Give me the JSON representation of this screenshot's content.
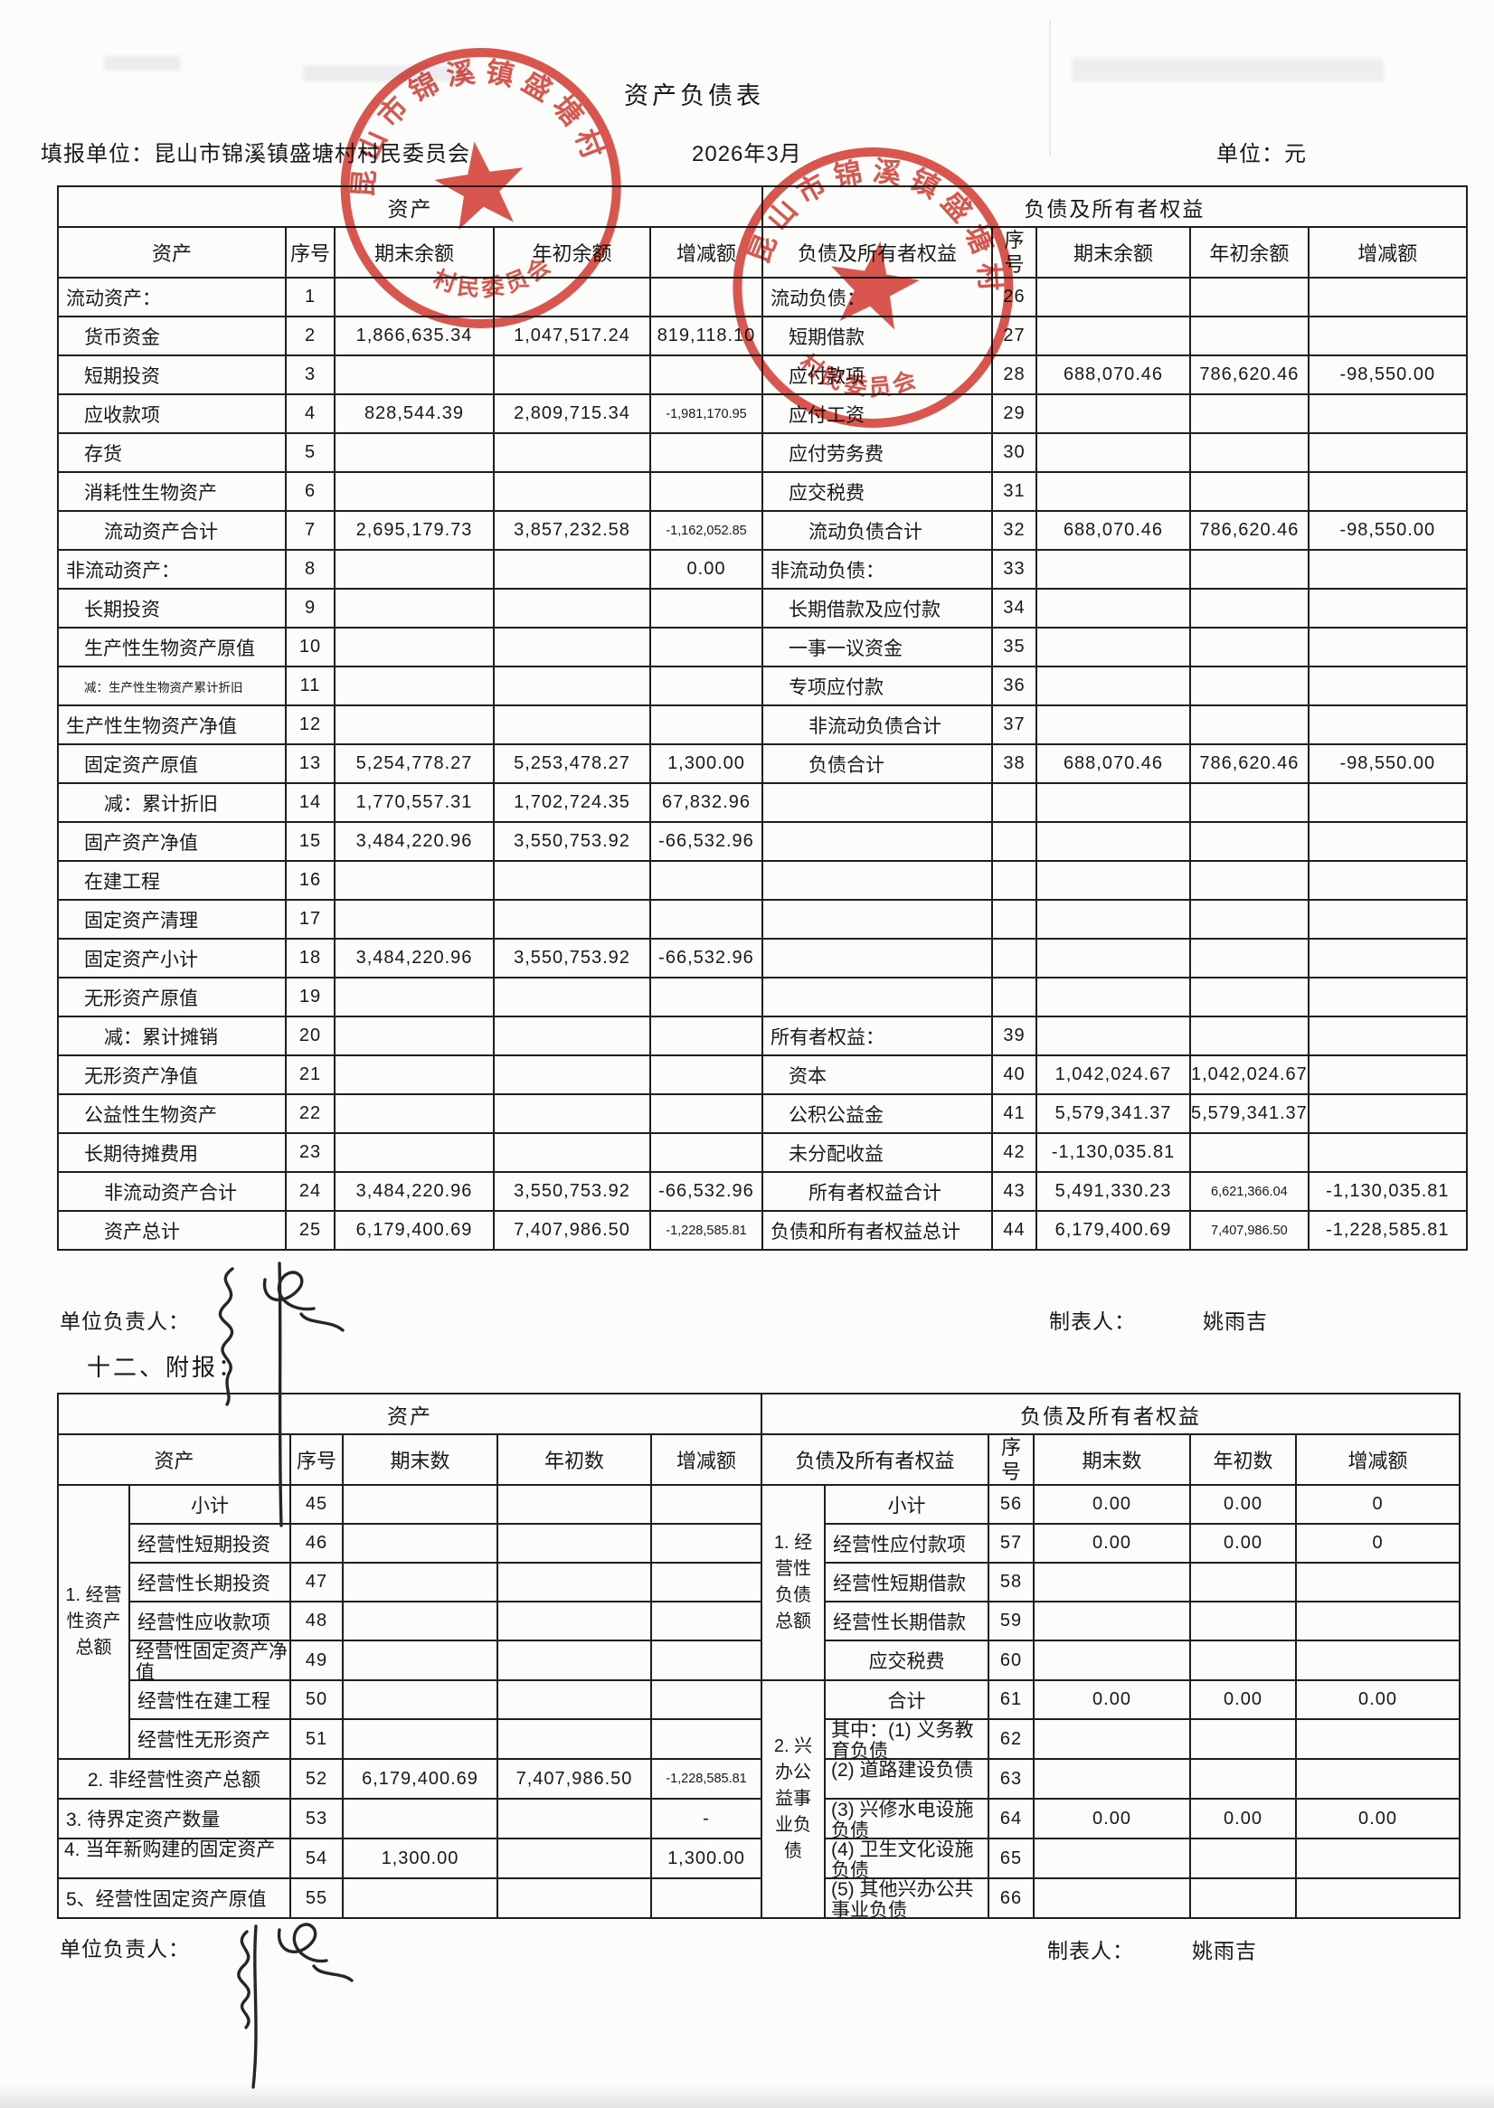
{
  "page": {
    "title": "资产负债表",
    "fill_unit": "填报单位：昆山市锦溪镇盛塘村村民委员会",
    "period": "2026年3月",
    "unit": "单位：元",
    "attachment_heading": "十二、附报："
  },
  "stamp": {
    "arc_text": "昆山市锦溪镇盛塘村",
    "bottom_text": "村民委员会",
    "color": "#d6372d"
  },
  "footer1": {
    "responsible_label": "单位负责人：",
    "preparer_label": "制表人：",
    "preparer_name": "姚雨吉"
  },
  "footer2": {
    "responsible_label": "单位负责人：",
    "preparer_label": "制表人：",
    "preparer_name": "姚雨吉"
  },
  "table1": {
    "section_left": "资产",
    "section_right": "负债及所有者权益",
    "cols_left": [
      "资产",
      "序号",
      "期末余额",
      "年初余额",
      "增减额"
    ],
    "cols_right": [
      "负债及所有者权益",
      "序号",
      "期末余额",
      "年初余额",
      "增减额"
    ],
    "rows": [
      {
        "l": {
          "label": "流动资产：",
          "no": "1",
          "ind": 0
        },
        "r": {
          "label": "流动负债：",
          "no": "26",
          "ind": 0
        }
      },
      {
        "l": {
          "label": "货币资金",
          "no": "2",
          "ind": 1,
          "end": "1,866,635.34",
          "begin": "1,047,517.24",
          "chg": "819,118.10"
        },
        "r": {
          "label": "短期借款",
          "no": "27",
          "ind": 1
        }
      },
      {
        "l": {
          "label": "短期投资",
          "no": "3",
          "ind": 1
        },
        "r": {
          "label": "应付款项",
          "no": "28",
          "ind": 1,
          "end": "688,070.46",
          "begin": "786,620.46",
          "chg": "-98,550.00"
        }
      },
      {
        "l": {
          "label": "应收款项",
          "no": "4",
          "ind": 1,
          "end": "828,544.39",
          "begin": "2,809,715.34",
          "chg": "-1,981,170.95",
          "chg_s": 1
        },
        "r": {
          "label": "应付工资",
          "no": "29",
          "ind": 1
        }
      },
      {
        "l": {
          "label": "存货",
          "no": "5",
          "ind": 1
        },
        "r": {
          "label": "应付劳务费",
          "no": "30",
          "ind": 1
        }
      },
      {
        "l": {
          "label": "消耗性生物资产",
          "no": "6",
          "ind": 1
        },
        "r": {
          "label": "应交税费",
          "no": "31",
          "ind": 1
        }
      },
      {
        "l": {
          "label": "流动资产合计",
          "no": "7",
          "ind": 2,
          "end": "2,695,179.73",
          "begin": "3,857,232.58",
          "chg": "-1,162,052.85",
          "chg_s": 1
        },
        "r": {
          "label": "流动负债合计",
          "no": "32",
          "ind": 2,
          "end": "688,070.46",
          "begin": "786,620.46",
          "chg": "-98,550.00"
        }
      },
      {
        "l": {
          "label": "非流动资产：",
          "no": "8",
          "ind": 0,
          "chg": "0.00"
        },
        "r": {
          "label": "非流动负债：",
          "no": "33",
          "ind": 0
        }
      },
      {
        "l": {
          "label": "长期投资",
          "no": "9",
          "ind": 1
        },
        "r": {
          "label": "长期借款及应付款",
          "no": "34",
          "ind": 1
        }
      },
      {
        "l": {
          "label": "生产性生物资产原值",
          "no": "10",
          "ind": 1
        },
        "r": {
          "label": "一事一议资金",
          "no": "35",
          "ind": 1
        }
      },
      {
        "l": {
          "label": "减：生产性生物资产累计折旧",
          "no": "11",
          "ind": 1,
          "label_s": 1
        },
        "r": {
          "label": "专项应付款",
          "no": "36",
          "ind": 1
        }
      },
      {
        "l": {
          "label": "生产性生物资产净值",
          "no": "12",
          "ind": 0
        },
        "r": {
          "label": "非流动负债合计",
          "no": "37",
          "ind": 2
        }
      },
      {
        "l": {
          "label": "固定资产原值",
          "no": "13",
          "ind": 1,
          "end": "5,254,778.27",
          "begin": "5,253,478.27",
          "chg": "1,300.00"
        },
        "r": {
          "label": "负债合计",
          "no": "38",
          "ind": 2,
          "end": "688,070.46",
          "begin": "786,620.46",
          "chg": "-98,550.00"
        }
      },
      {
        "l": {
          "label": "减：累计折旧",
          "no": "14",
          "ind": 2,
          "end": "1,770,557.31",
          "begin": "1,702,724.35",
          "chg": "67,832.96"
        },
        "r": {}
      },
      {
        "l": {
          "label": "固产资产净值",
          "no": "15",
          "ind": 1,
          "end": "3,484,220.96",
          "begin": "3,550,753.92",
          "chg": "-66,532.96"
        },
        "r": {}
      },
      {
        "l": {
          "label": "在建工程",
          "no": "16",
          "ind": 1
        },
        "r": {}
      },
      {
        "l": {
          "label": "固定资产清理",
          "no": "17",
          "ind": 1
        },
        "r": {}
      },
      {
        "l": {
          "label": "固定资产小计",
          "no": "18",
          "ind": 1,
          "end": "3,484,220.96",
          "begin": "3,550,753.92",
          "chg": "-66,532.96"
        },
        "r": {}
      },
      {
        "l": {
          "label": "无形资产原值",
          "no": "19",
          "ind": 1
        },
        "r": {}
      },
      {
        "l": {
          "label": "减：累计摊销",
          "no": "20",
          "ind": 2
        },
        "r": {
          "label": "所有者权益：",
          "no": "39",
          "ind": 0
        }
      },
      {
        "l": {
          "label": "无形资产净值",
          "no": "21",
          "ind": 1
        },
        "r": {
          "label": "资本",
          "no": "40",
          "ind": 1,
          "end": "1,042,024.67",
          "begin": "1,042,024.67"
        }
      },
      {
        "l": {
          "label": "公益性生物资产",
          "no": "22",
          "ind": 1
        },
        "r": {
          "label": "公积公益金",
          "no": "41",
          "ind": 1,
          "end": "5,579,341.37",
          "begin": "5,579,341.37"
        }
      },
      {
        "l": {
          "label": "长期待摊费用",
          "no": "23",
          "ind": 1
        },
        "r": {
          "label": "未分配收益",
          "no": "42",
          "ind": 1,
          "end": "-1,130,035.81"
        }
      },
      {
        "l": {
          "label": "非流动资产合计",
          "no": "24",
          "ind": 2,
          "end": "3,484,220.96",
          "begin": "3,550,753.92",
          "chg": "-66,532.96"
        },
        "r": {
          "label": "所有者权益合计",
          "no": "43",
          "ind": 2,
          "end": "5,491,330.23",
          "begin": "6,621,366.04",
          "begin_s": 1,
          "chg": "-1,130,035.81"
        }
      },
      {
        "l": {
          "label": "资产总计",
          "no": "25",
          "ind": 2,
          "end": "6,179,400.69",
          "begin": "7,407,986.50",
          "chg": "-1,228,585.81",
          "chg_s": 1
        },
        "r": {
          "label": "负债和所有者权益总计",
          "no": "44",
          "ind": 0,
          "end": "6,179,400.69",
          "begin": "7,407,986.50",
          "begin_s": 1,
          "chg": "-1,228,585.81"
        }
      }
    ]
  },
  "table2": {
    "section_left": "资产",
    "section_right": "负债及所有者权益",
    "cols_left": [
      "资产",
      "序号",
      "期末数",
      "年初数",
      "增减额"
    ],
    "cols_right": [
      "负债及所有者权益",
      "序号",
      "期末数",
      "年初数",
      "增减额"
    ],
    "left_group": {
      "label": "1. 经营\n性资产\n总额",
      "items": [
        {
          "label": "小计",
          "no": "45",
          "c": 1
        },
        {
          "label": "经营性短期投资",
          "no": "46"
        },
        {
          "label": "经营性长期投资",
          "no": "47"
        },
        {
          "label": "经营性应收款项",
          "no": "48"
        },
        {
          "label": "经营性固定资产净值",
          "no": "49",
          "clip": 1
        },
        {
          "label": "经营性在建工程",
          "no": "50"
        },
        {
          "label": "经营性无形资产",
          "no": "51"
        }
      ]
    },
    "left_rows": [
      {
        "label": "2. 非经营性资产总额",
        "no": "52",
        "c": 1,
        "end": "6,179,400.69",
        "begin": "7,407,986.50",
        "chg": "-1,228,585.81",
        "chg_s": 1
      },
      {
        "label": "3. 待界定资产数量",
        "no": "53",
        "chg": "-"
      },
      {
        "label": "4. 当年新购建的固定资产",
        "no": "54",
        "clip": 1,
        "end": "1,300.00",
        "chg": "1,300.00"
      },
      {
        "label": "5、经营性固定资产原值",
        "no": "55"
      }
    ],
    "right_group1": {
      "label": "1. 经\n营性\n负债\n总额",
      "items": [
        {
          "label": "小计",
          "no": "56",
          "c": 1,
          "end": "0.00",
          "begin": "0.00",
          "chg": "0"
        },
        {
          "label": "经营性应付款项",
          "no": "57",
          "end": "0.00",
          "begin": "0.00",
          "chg": "0"
        },
        {
          "label": "经营性短期借款",
          "no": "58"
        },
        {
          "label": "经营性长期借款",
          "no": "59"
        },
        {
          "label": "应交税费",
          "no": "60",
          "c": 1
        }
      ]
    },
    "right_group2": {
      "label": "2. 兴\n办公\n益事\n业负\n债",
      "items": [
        {
          "label": "合计",
          "no": "61",
          "c": 1,
          "end": "0.00",
          "begin": "0.00",
          "chg": "0.00"
        },
        {
          "label": "其中：(1) 义务教育负债",
          "no": "62",
          "clip": 1
        },
        {
          "label": "(2) 道路建设负债",
          "no": "63",
          "clip": 1
        },
        {
          "label": "(3) 兴修水电设施负债",
          "no": "64",
          "clip": 1,
          "end": "0.00",
          "begin": "0.00",
          "chg": "0.00"
        },
        {
          "label": "(4) 卫生文化设施负债",
          "no": "65",
          "clip": 1
        },
        {
          "label": "(5) 其他兴办公共事业负债",
          "no": "66",
          "clip": 1
        }
      ]
    }
  }
}
